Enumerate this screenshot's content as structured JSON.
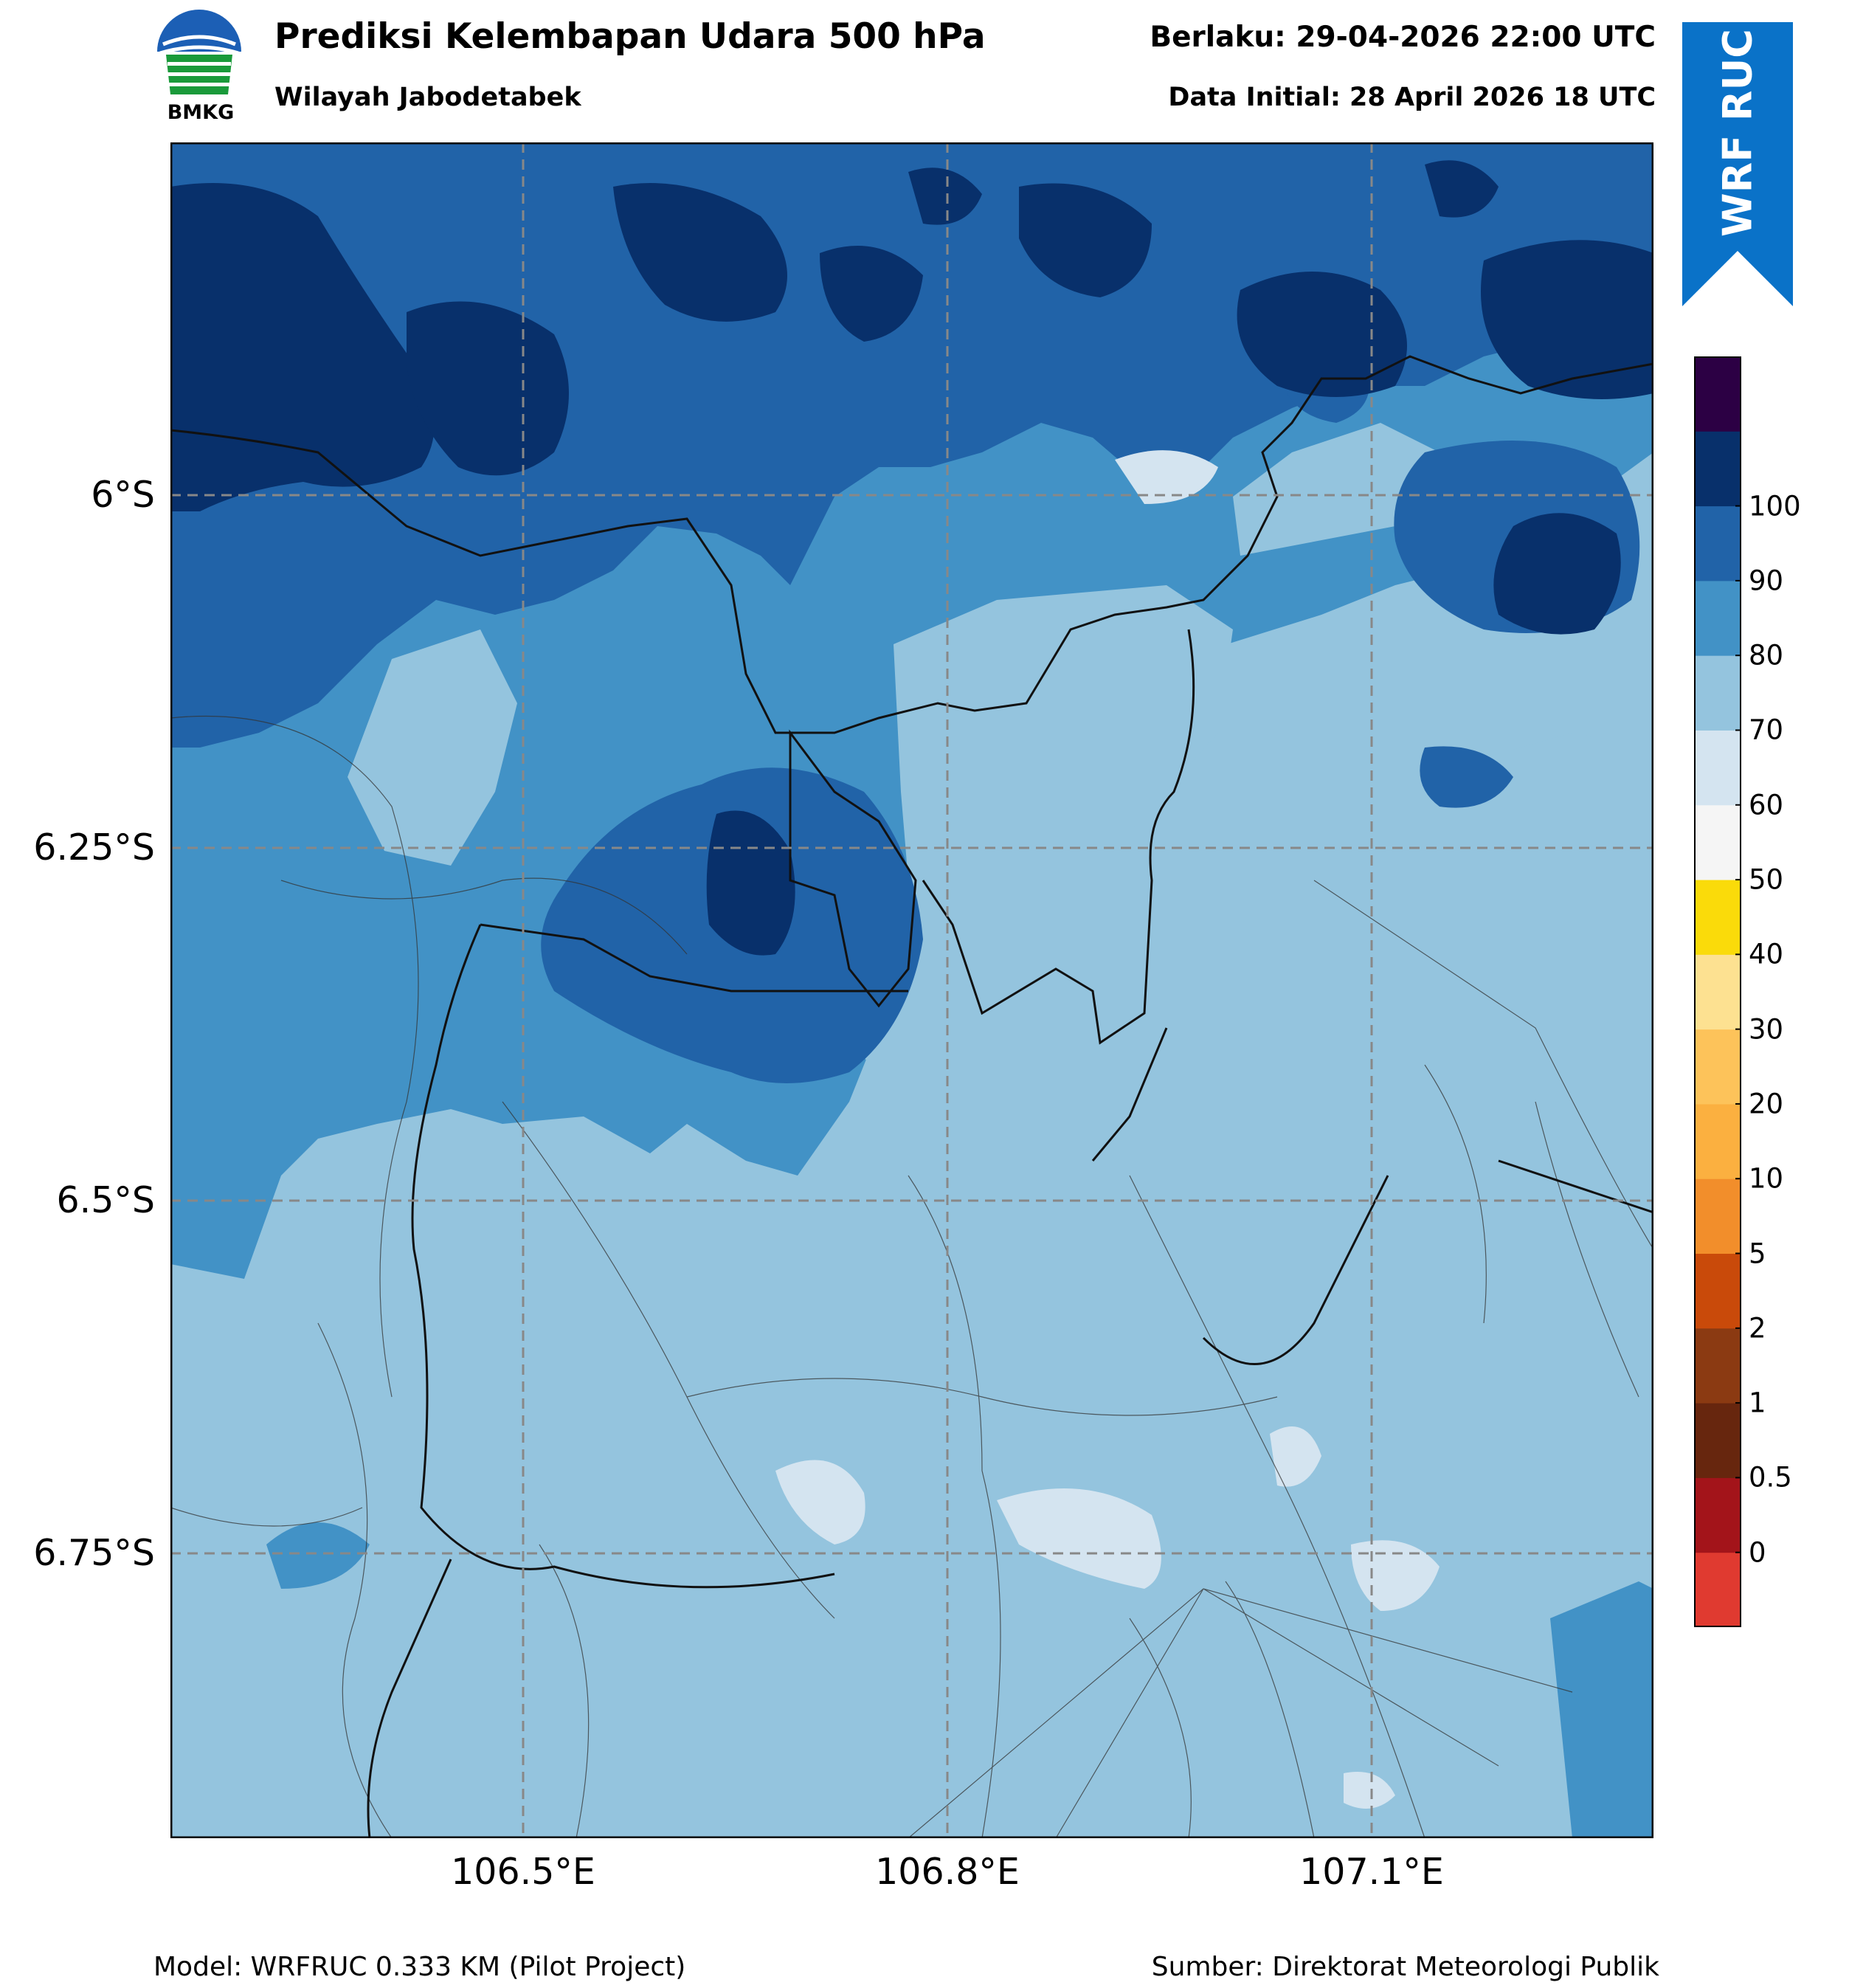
{
  "header": {
    "logo_text": "BMKG",
    "title": "Prediksi Kelembapan Udara 500 hPa",
    "subtitle": "Wilayah Jabodetabek",
    "valid_time": "Berlaku: 29-04-2026 22:00 UTC",
    "initial_data": "Data Initial: 28 April 2026 18 UTC",
    "ribbon_label": "WRF RUC"
  },
  "map": {
    "lat_labels": [
      "6°S",
      "6.25°S",
      "6.5°S",
      "6.75°S"
    ],
    "lon_labels": [
      "106.5°E",
      "106.8°E",
      "107.1°E"
    ],
    "gridlines": "dashed"
  },
  "colorbar": {
    "labels": [
      "0",
      "0.5",
      "1",
      "2",
      "5",
      "10",
      "20",
      "30",
      "40",
      "50",
      "60",
      "70",
      "80",
      "90",
      "100"
    ],
    "colors": [
      "#e03a30",
      "#a3141a",
      "#67260e",
      "#8b3a12",
      "#c94a0a",
      "#f28e2b",
      "#fbb040",
      "#fdc35a",
      "#fde191",
      "#fadb0a",
      "#f5f5f5",
      "#d4e4f0",
      "#94c4de",
      "#4292c6",
      "#2163a8",
      "#08306b",
      "#2c0044"
    ],
    "domain_colors": {
      "lt50": "#f5f5f5",
      "c50": "#d4e4f0",
      "c60": "#94c4de",
      "c70": "#4292c6",
      "c80": "#2163a8",
      "c90": "#08306b"
    }
  },
  "footer": {
    "model": "Model: WRFRUC 0.333 KM (Pilot Project)",
    "source": "Sumber: Direktorat Meteorologi Publik"
  }
}
